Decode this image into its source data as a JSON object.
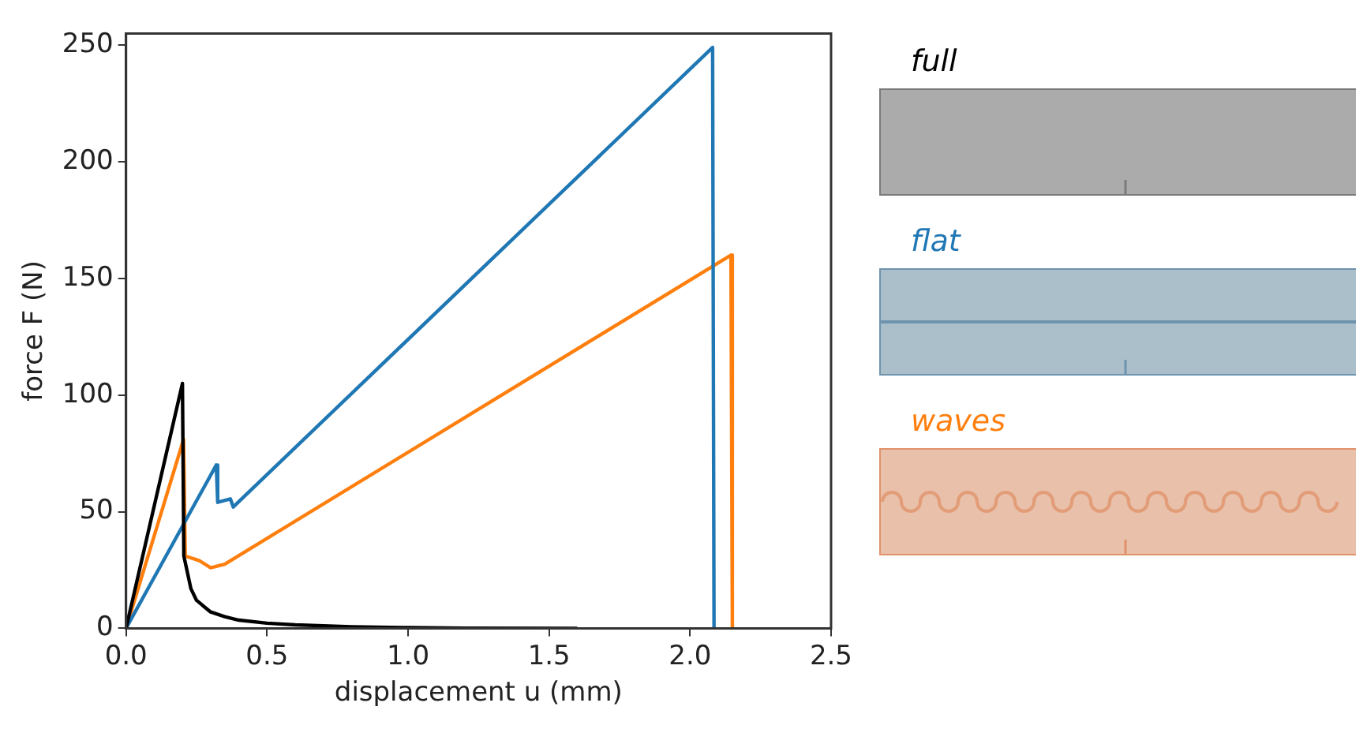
{
  "chart_data": {
    "type": "line",
    "xlabel": "displacement u (mm)",
    "ylabel": "force F (N)",
    "xlim": [
      0,
      2.5
    ],
    "xticks": [
      {
        "value": 0,
        "label": "0.0"
      },
      {
        "value": 0.5,
        "label": "0.5"
      },
      {
        "value": 1,
        "label": "1.0"
      },
      {
        "value": 1.5,
        "label": "1.5"
      },
      {
        "value": 2,
        "label": "2.0"
      },
      {
        "value": 2.5,
        "label": "2.5"
      }
    ],
    "ylim": [
      0,
      255
    ],
    "yticks": [
      0,
      50,
      100,
      150,
      200,
      250
    ],
    "grid": false,
    "legend": "right",
    "series": [
      {
        "name": "full",
        "color": "#000000",
        "x": [
          0,
          0.2,
          0.205,
          0.23,
          0.25,
          0.3,
          0.35,
          0.4,
          0.5,
          0.6,
          0.8,
          1.0,
          1.2,
          1.6
        ],
        "values": [
          0,
          105,
          31,
          17,
          12,
          7,
          5,
          3.5,
          2.2,
          1.5,
          0.7,
          0.3,
          0.1,
          0
        ]
      },
      {
        "name": "flat",
        "color": "#1f77b4",
        "x": [
          0,
          0.32,
          0.325,
          0.37,
          0.38,
          2.08,
          2.085
        ],
        "values": [
          0,
          70,
          54,
          55.5,
          52,
          249,
          0
        ]
      },
      {
        "name": "waves",
        "color": "#ff7f0e",
        "x": [
          0,
          0.204,
          0.21,
          0.26,
          0.3,
          0.35,
          2.145,
          2.15
        ],
        "values": [
          0,
          81,
          31,
          29,
          26,
          27.5,
          160,
          0
        ]
      }
    ]
  }
}
